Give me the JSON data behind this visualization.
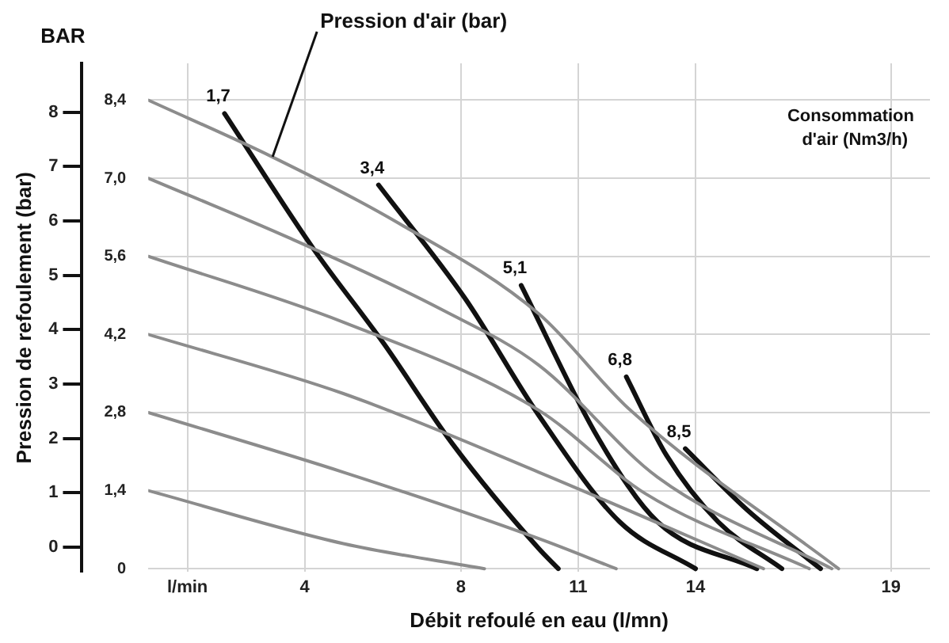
{
  "chart_data": {
    "type": "line",
    "xlabel": "Débit refoulé en eau (l/mn)",
    "ylabel": "Pression de refoulement (bar)",
    "xlim": [
      0,
      20
    ],
    "xticks": [
      {
        "value": 1,
        "label": "l/min"
      },
      4,
      8,
      11,
      14,
      19
    ],
    "ylim": [
      -0.46,
      8.9
    ],
    "yticks": [
      0,
      1,
      2,
      3,
      4,
      5,
      6,
      7,
      8
    ],
    "y2lim": [
      -0.06,
      9.06
    ],
    "y2ticks": [
      0,
      {
        "value": 1.4,
        "label": "1,4"
      },
      {
        "value": 2.8,
        "label": "2,8"
      },
      {
        "value": 4.2,
        "label": "4,2"
      },
      {
        "value": 5.6,
        "label": "5,6"
      },
      {
        "value": 7.0,
        "label": "7,0"
      },
      {
        "value": 8.4,
        "label": "8,4"
      }
    ],
    "grid": true,
    "legend": false,
    "marker": "none",
    "line_style": "solid",
    "annotations": [
      {
        "text": "Pression d'air (bar)",
        "x": 3.18,
        "y": 7.18
      },
      "BAR",
      "Consommation d'air (Nm3/h)"
    ],
    "series": [
      {
        "color": "#8c8c8c",
        "axis": "y2",
        "x": [
          0,
          3.18,
          6.34,
          9.99,
          12.29,
          17.66
        ],
        "values": [
          8.4,
          7.38,
          6.22,
          4.57,
          2.87,
          0
        ]
      },
      {
        "color": "#8c8c8c",
        "axis": "y2",
        "x": [
          0,
          3.64,
          7.55,
          9.99,
          13.03,
          17.49
        ],
        "values": [
          7.0,
          5.92,
          4.63,
          3.65,
          1.64,
          0
        ]
      },
      {
        "color": "#8c8c8c",
        "axis": "y2",
        "x": [
          0,
          4.99,
          9.99,
          12.71,
          16.91
        ],
        "values": [
          5.6,
          4.42,
          2.84,
          1.35,
          0
        ]
      },
      {
        "color": "#8c8c8c",
        "axis": "y2",
        "x": [
          0,
          4.99,
          9.99,
          15.74
        ],
        "values": [
          4.2,
          3.14,
          1.73,
          0
        ]
      },
      {
        "color": "#8c8c8c",
        "axis": "y2",
        "x": [
          0,
          4.99,
          9.99,
          11.97
        ],
        "values": [
          2.8,
          1.73,
          0.54,
          0
        ]
      },
      {
        "color": "#8c8c8c",
        "axis": "y2",
        "x": [
          0,
          4.99,
          8.6
        ],
        "values": [
          1.4,
          0.45,
          0
        ]
      },
      {
        "name": "1,7",
        "color": "#111111",
        "axis": "y2",
        "x": [
          1.95,
          4.22,
          6.02,
          7.78,
          9.99,
          10.49
        ],
        "values": [
          8.16,
          5.74,
          4.04,
          2.24,
          0.36,
          0
        ]
      },
      {
        "name": "3,4",
        "color": "#111111",
        "axis": "y2",
        "x": [
          5.89,
          8.11,
          9.99,
          12.06,
          14
        ],
        "values": [
          6.88,
          4.84,
          2.75,
          0.84,
          0
        ]
      },
      {
        "name": "5,1",
        "color": "#111111",
        "axis": "y2",
        "x": [
          9.54,
          11.52,
          13.03,
          15.57
        ],
        "values": [
          5.08,
          2.33,
          0.84,
          0
        ]
      },
      {
        "name": "6,8",
        "color": "#111111",
        "axis": "y2",
        "x": [
          12.23,
          13.26,
          14.58,
          16.21
        ],
        "values": [
          3.44,
          2.03,
          0.84,
          0
        ]
      },
      {
        "name": "8,5",
        "color": "#111111",
        "axis": "y2",
        "x": [
          13.74,
          15.33,
          17.2
        ],
        "values": [
          2.15,
          1.05,
          0
        ]
      }
    ]
  }
}
